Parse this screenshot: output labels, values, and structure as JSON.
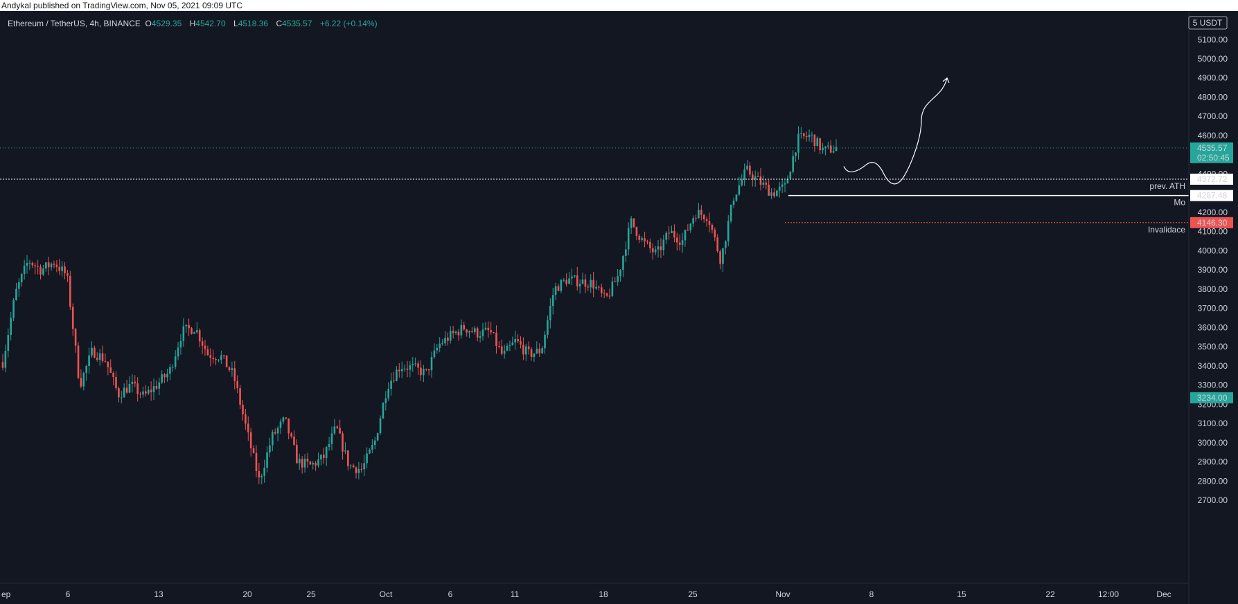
{
  "header": {
    "publisher": "Andykal published on TradingView.com, Nov 05, 2021 09:09 UTC"
  },
  "legend": {
    "symbol": "Ethereum / TetherUS, 4h, BINANCE",
    "open_label": "O",
    "open": "4529.35",
    "high_label": "H",
    "high": "4542.70",
    "low_label": "L",
    "low": "4518.36",
    "close_label": "C",
    "close": "4535.57",
    "change": "+6.22 (+0.14%)"
  },
  "colors": {
    "background": "#131722",
    "up": "#26a69a",
    "down": "#ef5350",
    "text": "#d1d4dc"
  },
  "chart_data": {
    "type": "candlestick",
    "interval": "4h",
    "currency": "USDT",
    "currency_label": "5 USDT",
    "price_axis_ticks": [
      "5100.00",
      "5000.00",
      "4900.00",
      "4800.00",
      "4700.00",
      "4600.00",
      "4400.00",
      "4200.00",
      "4100.00",
      "4000.00",
      "3900.00",
      "3800.00",
      "3700.00",
      "3600.00",
      "3500.00",
      "3400.00",
      "3300.00",
      "3200.00",
      "3100.00",
      "3000.00",
      "2900.00",
      "2800.00",
      "2700.00"
    ],
    "time_axis_labels": [
      "ep",
      "6",
      "13",
      "20",
      "25",
      "Oct",
      "6",
      "11",
      "18",
      "25",
      "Nov",
      "8",
      "15",
      "22",
      "12:00",
      "Dec"
    ],
    "ylim": [
      2650,
      5200
    ],
    "price_path": [
      {
        "d": "Sep 2",
        "p": 3420
      },
      {
        "d": "Sep 3",
        "p": 3780
      },
      {
        "d": "Sep 4",
        "p": 3950
      },
      {
        "d": "Sep 5",
        "p": 3900
      },
      {
        "d": "Sep 6",
        "p": 3940
      },
      {
        "d": "Sep 7",
        "p": 3870
      },
      {
        "d": "Sep 7 b",
        "p": 3300
      },
      {
        "d": "Sep 8",
        "p": 3480
      },
      {
        "d": "Sep 9",
        "p": 3430
      },
      {
        "d": "Sep 10",
        "p": 3250
      },
      {
        "d": "Sep 11",
        "p": 3300
      },
      {
        "d": "Sep 12",
        "p": 3240
      },
      {
        "d": "Sep 13",
        "p": 3300
      },
      {
        "d": "Sep 14",
        "p": 3370
      },
      {
        "d": "Sep 15",
        "p": 3580
      },
      {
        "d": "Sep 16",
        "p": 3600
      },
      {
        "d": "Sep 17",
        "p": 3460
      },
      {
        "d": "Sep 18",
        "p": 3450
      },
      {
        "d": "Sep 19",
        "p": 3350
      },
      {
        "d": "Sep 20",
        "p": 3070
      },
      {
        "d": "Sep 21",
        "p": 2800
      },
      {
        "d": "Sep 22",
        "p": 3030
      },
      {
        "d": "Sep 23",
        "p": 3120
      },
      {
        "d": "Sep 24",
        "p": 2900
      },
      {
        "d": "Sep 25",
        "p": 2880
      },
      {
        "d": "Sep 26",
        "p": 2920
      },
      {
        "d": "Sep 27",
        "p": 3080
      },
      {
        "d": "Sep 28",
        "p": 2880
      },
      {
        "d": "Sep 29",
        "p": 2860
      },
      {
        "d": "Sep 30",
        "p": 3000
      },
      {
        "d": "Oct 1",
        "p": 3300
      },
      {
        "d": "Oct 2",
        "p": 3400
      },
      {
        "d": "Oct 3",
        "p": 3390
      },
      {
        "d": "Oct 4",
        "p": 3360
      },
      {
        "d": "Oct 5",
        "p": 3510
      },
      {
        "d": "Oct 6",
        "p": 3560
      },
      {
        "d": "Oct 7",
        "p": 3600
      },
      {
        "d": "Oct 8",
        "p": 3570
      },
      {
        "d": "Oct 9",
        "p": 3580
      },
      {
        "d": "Oct 10",
        "p": 3450
      },
      {
        "d": "Oct 11",
        "p": 3530
      },
      {
        "d": "Oct 12",
        "p": 3460
      },
      {
        "d": "Oct 13",
        "p": 3480
      },
      {
        "d": "Oct 14",
        "p": 3800
      },
      {
        "d": "Oct 15",
        "p": 3850
      },
      {
        "d": "Oct 16",
        "p": 3840
      },
      {
        "d": "Oct 17",
        "p": 3830
      },
      {
        "d": "Oct 18",
        "p": 3740
      },
      {
        "d": "Oct 19",
        "p": 3870
      },
      {
        "d": "Oct 20",
        "p": 4150
      },
      {
        "d": "Oct 21",
        "p": 4040
      },
      {
        "d": "Oct 22",
        "p": 3980
      },
      {
        "d": "Oct 23",
        "p": 4100
      },
      {
        "d": "Oct 24",
        "p": 4050
      },
      {
        "d": "Oct 25",
        "p": 4200
      },
      {
        "d": "Oct 26",
        "p": 4180
      },
      {
        "d": "Oct 27",
        "p": 3950
      },
      {
        "d": "Oct 28",
        "p": 4280
      },
      {
        "d": "Oct 29",
        "p": 4420
      },
      {
        "d": "Oct 30",
        "p": 4360
      },
      {
        "d": "Oct 31",
        "p": 4300
      },
      {
        "d": "Nov 1",
        "p": 4330
      },
      {
        "d": "Nov 2",
        "p": 4580
      },
      {
        "d": "Nov 3",
        "p": 4600
      },
      {
        "d": "Nov 4",
        "p": 4520
      },
      {
        "d": "Nov 5",
        "p": 4535.57
      }
    ],
    "levels": [
      {
        "name": "current",
        "price": 4535.57,
        "label": "4535.57",
        "countdown": "02:50:45",
        "color": "#26a69a"
      },
      {
        "name": "prev-ath",
        "price": 4372.72,
        "label": "4372.72",
        "text": "prev. ATH",
        "color": "#ffffff"
      },
      {
        "name": "mo",
        "price": 4287.48,
        "label": "4287.48",
        "text": "Mo",
        "color": "#ffffff"
      },
      {
        "name": "invalidation",
        "price": 4146.3,
        "label": "4146.30",
        "text": "Invalidace",
        "color": "#ef5350"
      },
      {
        "name": "marker",
        "price": 3234.0,
        "label": "3234.00",
        "color": "#26a69a"
      }
    ],
    "projection": [
      {
        "d": "Nov 5",
        "p": 4440
      },
      {
        "d": "Nov 6",
        "p": 4420
      },
      {
        "d": "Nov 7",
        "p": 4350
      },
      {
        "d": "Nov 10",
        "p": 4680
      },
      {
        "d": "Nov 13",
        "p": 4900
      }
    ]
  }
}
